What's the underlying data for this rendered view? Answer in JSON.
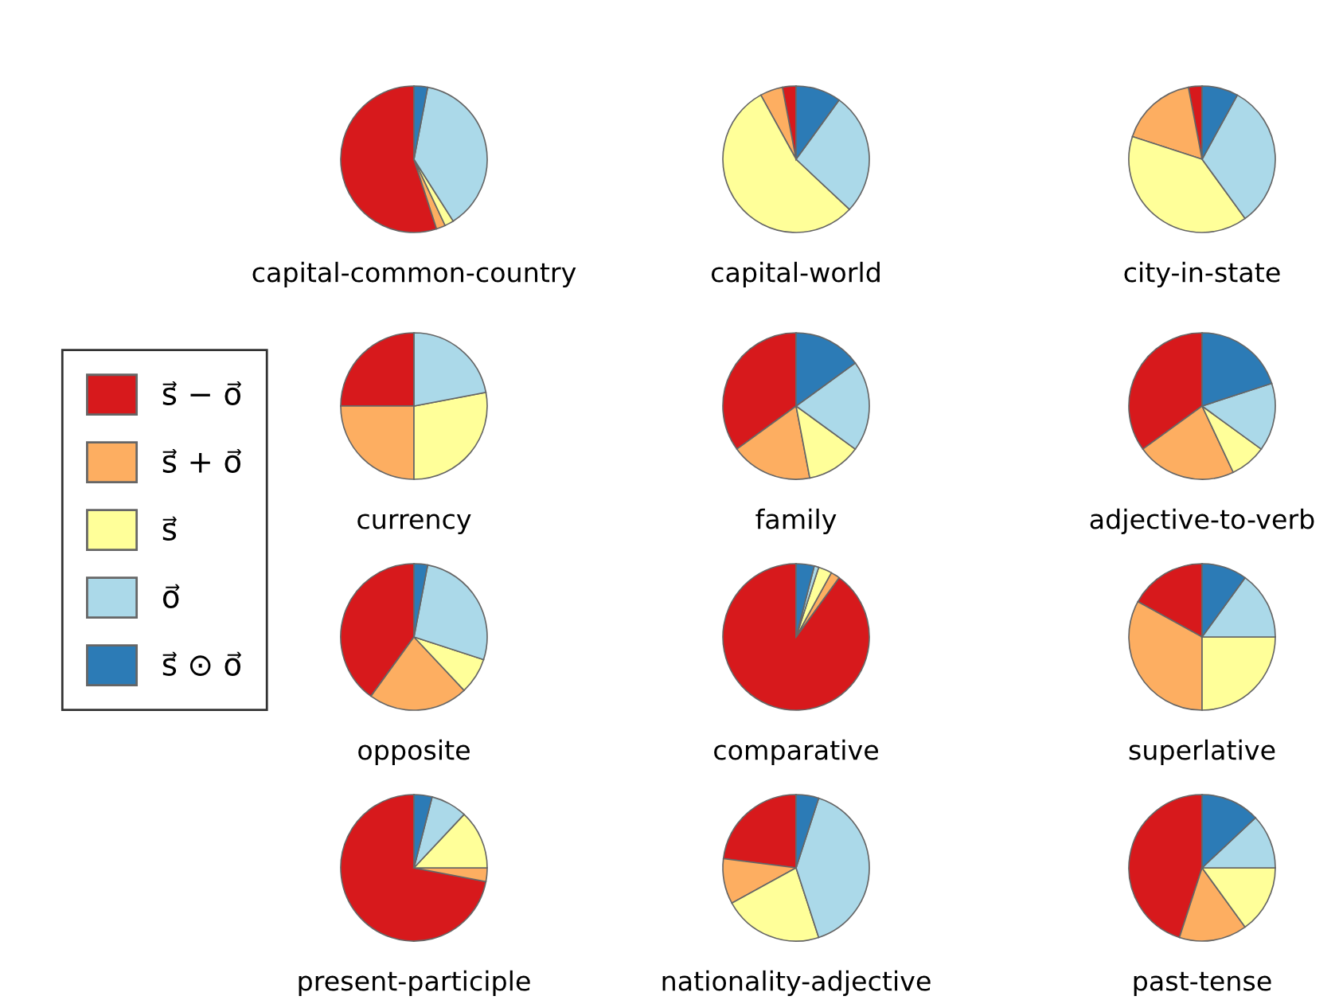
{
  "chart_data": [
    {
      "type": "pie",
      "title": "capital-common-country",
      "categories": [
        "s⃗ − o⃗",
        "s⃗ + o⃗",
        "s⃗",
        "o⃗",
        "s⃗ ⊙ o⃗"
      ],
      "values": [
        55,
        2,
        2,
        38,
        3
      ],
      "colors": [
        "#d7191c",
        "#fdae61",
        "#ffff99",
        "#abd9e9",
        "#2c7bb6"
      ],
      "legend": "left"
    },
    {
      "type": "pie",
      "title": "capital-world",
      "categories": [
        null,
        null,
        null,
        null,
        null
      ],
      "values": [
        3,
        5,
        55,
        27,
        10
      ],
      "colors": [
        "#d7191c",
        "#fdae61",
        "#ffff99",
        "#abd9e9",
        "#2c7bb6"
      ]
    },
    {
      "type": "pie",
      "title": "city-in-state",
      "categories": [
        null,
        null,
        null,
        null,
        null
      ],
      "values": [
        3,
        17,
        40,
        32,
        8
      ],
      "colors": [
        "#d7191c",
        "#fdae61",
        "#ffff99",
        "#abd9e9",
        "#2c7bb6"
      ]
    },
    {
      "type": "pie",
      "title": "currency",
      "categories": [
        null,
        null,
        null,
        null,
        null
      ],
      "values": [
        25,
        25,
        28,
        22,
        0
      ],
      "colors": [
        "#d7191c",
        "#fdae61",
        "#ffff99",
        "#abd9e9",
        "#2c7bb6"
      ]
    },
    {
      "type": "pie",
      "title": "family",
      "categories": [
        null,
        null,
        null,
        null,
        null
      ],
      "values": [
        35,
        18,
        12,
        20,
        15
      ],
      "colors": [
        "#d7191c",
        "#fdae61",
        "#ffff99",
        "#abd9e9",
        "#2c7bb6"
      ]
    },
    {
      "type": "pie",
      "title": "adjective-to-verb",
      "categories": [
        null,
        null,
        null,
        null,
        null
      ],
      "values": [
        35,
        22,
        8,
        15,
        20
      ],
      "colors": [
        "#d7191c",
        "#fdae61",
        "#ffff99",
        "#abd9e9",
        "#2c7bb6"
      ]
    },
    {
      "type": "pie",
      "title": "opposite",
      "categories": [
        null,
        null,
        null,
        null,
        null
      ],
      "values": [
        40,
        22,
        8,
        27,
        3
      ],
      "colors": [
        "#d7191c",
        "#fdae61",
        "#ffff99",
        "#abd9e9",
        "#2c7bb6"
      ]
    },
    {
      "type": "pie",
      "title": "comparative",
      "categories": [
        null,
        null,
        null,
        null,
        null
      ],
      "values": [
        90,
        2,
        3,
        1,
        4
      ],
      "colors": [
        "#d7191c",
        "#fdae61",
        "#ffff99",
        "#abd9e9",
        "#2c7bb6"
      ]
    },
    {
      "type": "pie",
      "title": "superlative",
      "categories": [
        null,
        null,
        null,
        null,
        null
      ],
      "values": [
        17,
        33,
        25,
        15,
        10
      ],
      "colors": [
        "#d7191c",
        "#fdae61",
        "#ffff99",
        "#abd9e9",
        "#2c7bb6"
      ]
    },
    {
      "type": "pie",
      "title": "present-participle",
      "categories": [
        null,
        null,
        null,
        null,
        null
      ],
      "values": [
        72,
        3,
        13,
        8,
        4
      ],
      "colors": [
        "#d7191c",
        "#fdae61",
        "#ffff99",
        "#abd9e9",
        "#2c7bb6"
      ]
    },
    {
      "type": "pie",
      "title": "nationality-adjective",
      "categories": [
        null,
        null,
        null,
        null,
        null
      ],
      "values": [
        23,
        10,
        22,
        40,
        5
      ],
      "colors": [
        "#d7191c",
        "#fdae61",
        "#ffff99",
        "#abd9e9",
        "#2c7bb6"
      ]
    },
    {
      "type": "pie",
      "title": "past-tense",
      "categories": [
        null,
        null,
        null,
        null,
        null
      ],
      "values": [
        45,
        15,
        15,
        12,
        13
      ],
      "colors": [
        "#d7191c",
        "#fdae61",
        "#ffff99",
        "#abd9e9",
        "#2c7bb6"
      ]
    }
  ]
}
